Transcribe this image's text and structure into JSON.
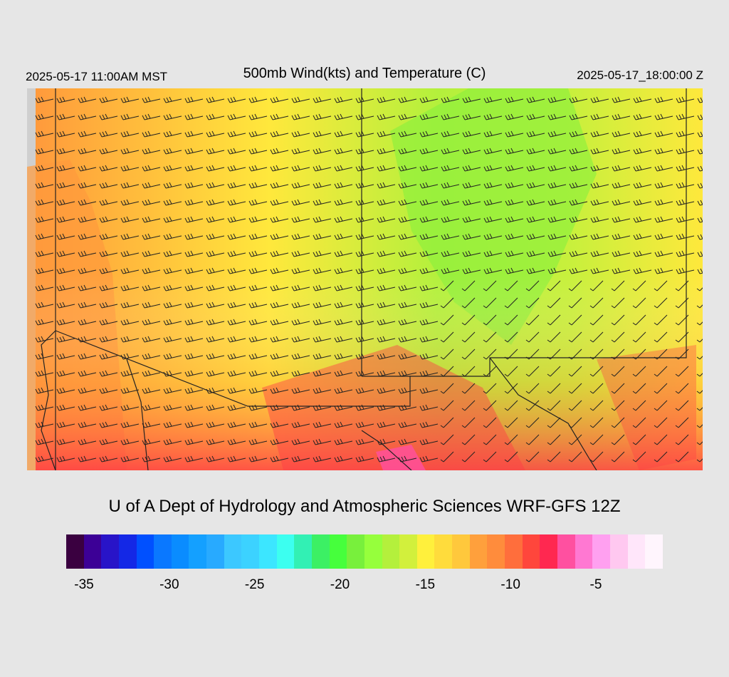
{
  "header": {
    "valid_local": "2025-05-17 11:00AM MST",
    "title": "500mb Wind(kts) and Temperature (C)",
    "valid_utc": "2025-05-17_18:00:00 Z"
  },
  "map": {
    "field": "500mb temperature",
    "overlay": "wind barbs",
    "state_borders": true
  },
  "footer": {
    "credit": "U of A Dept of Hydrology and Atmospheric Sciences WRF-GFS 12Z"
  },
  "colorbar": {
    "colors": [
      "#3a0040",
      "#3c0096",
      "#2814c8",
      "#1428e6",
      "#0050ff",
      "#0a78ff",
      "#0a8cff",
      "#14a0ff",
      "#28aaff",
      "#3cc8ff",
      "#3cd2ff",
      "#3ce6ff",
      "#3cfff0",
      "#32f0b4",
      "#3cf064",
      "#46ff3c",
      "#78f03c",
      "#96ff3c",
      "#b4f03c",
      "#d2f03c",
      "#fff03c",
      "#ffdc3c",
      "#ffc83c",
      "#ffa03c",
      "#ff8c3c",
      "#ff6e3c",
      "#ff463c",
      "#ff2850",
      "#ff50a0",
      "#ff78d2",
      "#ffa0f0",
      "#ffc8f0",
      "#ffe6fa",
      "#fff5fd"
    ],
    "ticks": [
      {
        "label": "-35",
        "value": -35
      },
      {
        "label": "-30",
        "value": -30
      },
      {
        "label": "-25",
        "value": -25
      },
      {
        "label": "-20",
        "value": -20
      },
      {
        "label": "-15",
        "value": -15
      },
      {
        "label": "-10",
        "value": -10
      },
      {
        "label": "-5",
        "value": -5
      }
    ]
  }
}
